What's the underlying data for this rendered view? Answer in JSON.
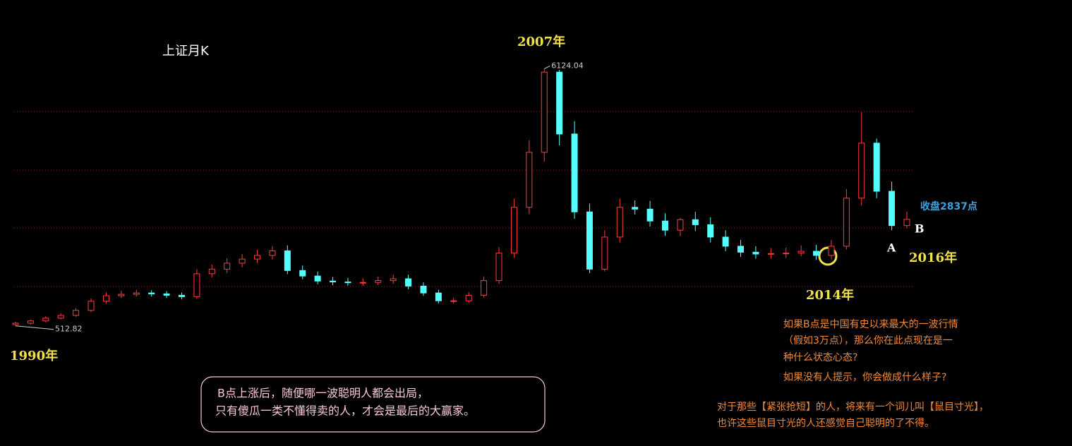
{
  "chart_data": {
    "type": "candlestick",
    "title": "上证月K",
    "categories": [
      null,
      null,
      null,
      null,
      null,
      null,
      null,
      null,
      null,
      null,
      null,
      null,
      null,
      null,
      null,
      null,
      null,
      null,
      null,
      null,
      null,
      null,
      null,
      null,
      null,
      null,
      null,
      null,
      null,
      null,
      null,
      null,
      null,
      null,
      null,
      null,
      null,
      null,
      null,
      null,
      null,
      null,
      null,
      null,
      null,
      null,
      null,
      null,
      null,
      null,
      null,
      null,
      null,
      null,
      null,
      null,
      null,
      null,
      null,
      null
    ],
    "open": [
      540,
      570,
      620,
      680,
      740,
      850,
      1050,
      1170,
      1200,
      1230,
      1210,
      1180,
      1150,
      1650,
      1750,
      1880,
      1970,
      2050,
      2150,
      1720,
      1600,
      1490,
      1470,
      1460,
      1460,
      1500,
      1540,
      1380,
      1230,
      1060,
      1060,
      1180,
      1500,
      2100,
      3100,
      4300,
      6050,
      4700,
      3000,
      1750,
      2450,
      3100,
      3060,
      2800,
      2600,
      2830,
      2720,
      2450,
      2250,
      2120,
      2080,
      2090,
      2100,
      2140,
      2050,
      2250,
      3300,
      4500,
      3450,
      2700
    ],
    "high": [
      600,
      650,
      720,
      790,
      900,
      1110,
      1240,
      1280,
      1300,
      1290,
      1270,
      1240,
      1750,
      1850,
      1990,
      2080,
      2170,
      2250,
      2270,
      1830,
      1700,
      1580,
      1560,
      1550,
      1590,
      1630,
      1630,
      1460,
      1300,
      1130,
      1250,
      1590,
      2230,
      3290,
      4560,
      6124.04,
      6100,
      4980,
      3180,
      2600,
      3290,
      3250,
      3240,
      2970,
      2870,
      3000,
      2880,
      2600,
      2390,
      2250,
      2210,
      2220,
      2270,
      2280,
      2390,
      3500,
      5178,
      4600,
      3660,
      3010
    ],
    "low": [
      512.82,
      540,
      590,
      650,
      710,
      810,
      1000,
      1120,
      1150,
      1150,
      1120,
      1090,
      1100,
      1570,
      1670,
      1790,
      1880,
      1960,
      1640,
      1530,
      1420,
      1400,
      1390,
      1390,
      1400,
      1430,
      1310,
      1170,
      998,
      1000,
      1010,
      1130,
      1430,
      2000,
      2950,
      4100,
      4450,
      2850,
      1664,
      1700,
      2330,
      2940,
      2680,
      2480,
      2470,
      2580,
      2330,
      2140,
      2020,
      1980,
      1980,
      1990,
      2030,
      1950,
      1960,
      2180,
      3140,
      3300,
      2600,
      2640
    ],
    "close": [
      570,
      620,
      680,
      740,
      850,
      1050,
      1170,
      1200,
      1230,
      1210,
      1180,
      1150,
      1650,
      1750,
      1880,
      1970,
      2050,
      2150,
      1720,
      1600,
      1490,
      1470,
      1460,
      1460,
      1500,
      1540,
      1380,
      1230,
      1060,
      1060,
      1180,
      1500,
      2100,
      3100,
      4300,
      6050,
      4700,
      3000,
      1750,
      2450,
      3100,
      3060,
      2800,
      2600,
      2830,
      2720,
      2450,
      2250,
      2120,
      2080,
      2090,
      2100,
      2140,
      2050,
      2250,
      3300,
      4500,
      3450,
      2700,
      2837
    ],
    "up_color": "#ff3b3b",
    "down_color": "#54ffff",
    "ylim": [
      0,
      6500
    ],
    "gridlines": [
      1370,
      2650,
      3910,
      5190
    ],
    "grid_color": "#8a1a1a",
    "annotations": [
      "2007年",
      "1990年",
      "2014年",
      "2016年",
      "A",
      "B",
      "收盘2837点"
    ],
    "question": [
      "如果B点是中国有史以来最大的一波行情",
      "（假如3万点），那么你在此点现在是一",
      "种什么状态心态?",
      "如果没有人提示，你会做成什么样子?"
    ],
    "remark": [
      "对于那些【紧张抢短】的人，将来有一个词儿叫【鼠目寸光】，",
      "也许这些鼠目寸光的人还感觉自己聪明的了不得。"
    ],
    "box": [
      "B点上涨后，随便哪一波聪明人都会出局，",
      "只有傻瓜一类不懂得卖的人，才会是最后的大赢家。"
    ]
  }
}
